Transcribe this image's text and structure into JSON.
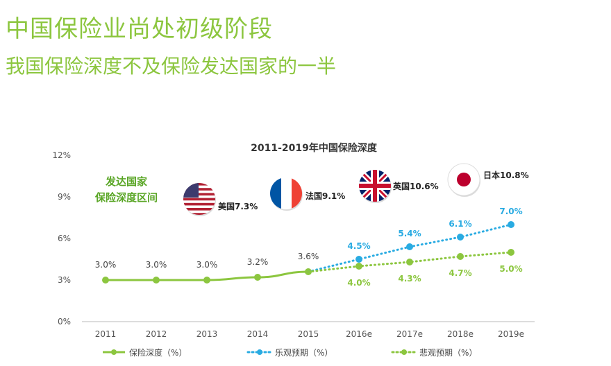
{
  "slide": {
    "title": "中国保险业尚处初级阶段",
    "subtitle": "我国保险深度不及保险发达国家的一半"
  },
  "colors": {
    "base": "#8cc63f",
    "optimistic": "#29abe2",
    "pessimistic": "#8cc63f",
    "title": "#8cc63f",
    "axis_text": "#555555",
    "band_label": "#5aa626"
  },
  "chart_data": {
    "type": "line",
    "title": "2011-2019年中国保险深度",
    "categories": [
      "2011",
      "2012",
      "2013",
      "2014",
      "2015",
      "2016e",
      "2017e",
      "2018e",
      "2019e"
    ],
    "y_ticks": [
      "0%",
      "3%",
      "6%",
      "9%",
      "12%"
    ],
    "ylim": [
      0,
      12
    ],
    "grid": false,
    "legend_position": "bottom",
    "series": [
      {
        "name": "保险深度（%）",
        "style": "solid",
        "values": [
          3.0,
          3.0,
          3.0,
          3.2,
          3.6,
          null,
          null,
          null,
          null
        ],
        "labels": [
          "3.0%",
          "3.0%",
          "3.0%",
          "3.2%",
          "3.6%",
          "",
          "",
          "",
          ""
        ]
      },
      {
        "name": "乐观预期（%）",
        "style": "dotted",
        "values": [
          null,
          null,
          null,
          null,
          3.6,
          4.5,
          5.4,
          6.1,
          7.0
        ],
        "labels": [
          "",
          "",
          "",
          "",
          "",
          "4.5%",
          "5.4%",
          "6.1%",
          "7.0%"
        ]
      },
      {
        "name": "悲观预期（%）",
        "style": "dotted",
        "values": [
          null,
          null,
          null,
          null,
          3.6,
          4.0,
          4.3,
          4.7,
          5.0
        ],
        "labels": [
          "",
          "",
          "",
          "",
          "",
          "4.0%",
          "4.3%",
          "4.7%",
          "5.0%"
        ]
      }
    ],
    "band_label_lines": [
      "发达国家",
      "保险深度区间"
    ],
    "countries": [
      {
        "label": "美国7.3%",
        "value": 7.3,
        "flag": "usa-flag"
      },
      {
        "label": "法国9.1%",
        "value": 9.1,
        "flag": "france-flag"
      },
      {
        "label": "英国10.6%",
        "value": 10.6,
        "flag": "uk-flag"
      },
      {
        "label": "日本10.8%",
        "value": 10.8,
        "flag": "japan-flag"
      }
    ]
  }
}
